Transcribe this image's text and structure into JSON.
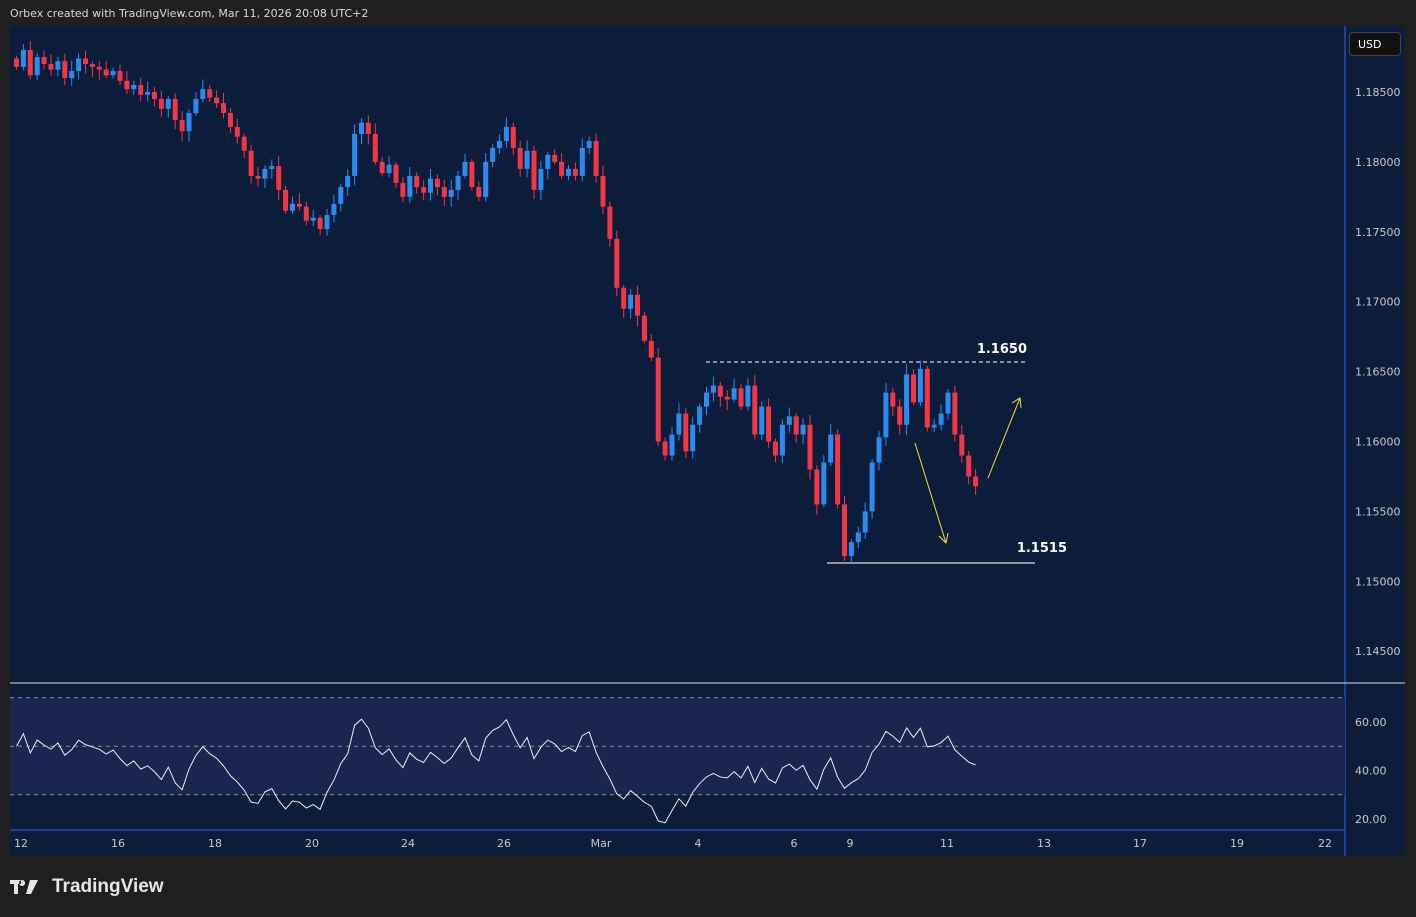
{
  "header": {
    "caption": "Orbex created with TradingView.com, Mar 11, 2026 20:08 UTC+2"
  },
  "currency": "USD",
  "logo_text": "TradingView",
  "chart_data": {
    "type": "candlestick",
    "price_axis": {
      "ticks": [
        "1.18500",
        "1.18000",
        "1.17500",
        "1.17000",
        "1.16500",
        "1.16000",
        "1.15500",
        "1.15000",
        "1.14500"
      ],
      "range": [
        1.1435,
        1.1885
      ]
    },
    "time_axis": {
      "ticks": [
        "12",
        "16",
        "18",
        "20",
        "24",
        "26",
        "Mar",
        "4",
        "6",
        "9",
        "11",
        "13",
        "17",
        "19",
        "22"
      ]
    },
    "closes": [
      1.1868,
      1.188,
      1.1862,
      1.1875,
      1.187,
      1.1866,
      1.1872,
      1.186,
      1.1865,
      1.1874,
      1.187,
      1.1868,
      1.1866,
      1.1862,
      1.1865,
      1.1858,
      1.1852,
      1.1855,
      1.1848,
      1.185,
      1.1845,
      1.1838,
      1.1845,
      1.183,
      1.1822,
      1.1835,
      1.1845,
      1.1852,
      1.1846,
      1.1842,
      1.1835,
      1.1825,
      1.1818,
      1.1808,
      1.179,
      1.1788,
      1.1795,
      1.1797,
      1.178,
      1.1765,
      1.177,
      1.1768,
      1.1758,
      1.176,
      1.1752,
      1.1762,
      1.177,
      1.1782,
      1.179,
      1.182,
      1.1828,
      1.182,
      1.18,
      1.1792,
      1.1798,
      1.1785,
      1.1775,
      1.179,
      1.1782,
      1.1778,
      1.1788,
      1.1782,
      1.1775,
      1.178,
      1.179,
      1.18,
      1.1782,
      1.1775,
      1.18,
      1.181,
      1.1815,
      1.1825,
      1.181,
      1.1795,
      1.1808,
      1.178,
      1.1795,
      1.1805,
      1.18,
      1.179,
      1.1795,
      1.179,
      1.181,
      1.1815,
      1.179,
      1.1768,
      1.1745,
      1.171,
      1.1695,
      1.1705,
      1.169,
      1.1672,
      1.166,
      1.16,
      1.159,
      1.1605,
      1.162,
      1.1593,
      1.1612,
      1.1625,
      1.1635,
      1.164,
      1.1632,
      1.163,
      1.1638,
      1.1625,
      1.164,
      1.1605,
      1.1625,
      1.16,
      1.159,
      1.1612,
      1.1618,
      1.1605,
      1.1612,
      1.158,
      1.1555,
      1.1585,
      1.1605,
      1.1555,
      1.1518,
      1.1528,
      1.1535,
      1.155,
      1.1585,
      1.1603,
      1.1635,
      1.1625,
      1.1612,
      1.1648,
      1.1628,
      1.1652,
      1.161,
      1.1612,
      1.162,
      1.1635,
      1.1605,
      1.159,
      1.1575,
      1.1568
    ],
    "annotations": {
      "resistance": {
        "label": "1.1650",
        "value": 1.165
      },
      "support": {
        "label": "1.1515",
        "value": 1.1515
      }
    },
    "rsi": {
      "ticks": [
        "60.00",
        "40.00",
        "20.00"
      ],
      "upper": 70,
      "middle": 50,
      "lower": 30,
      "period": 14
    },
    "colors": {
      "up": "#2a8cf0",
      "down": "#f23645",
      "arrow": "#f0e040"
    }
  }
}
